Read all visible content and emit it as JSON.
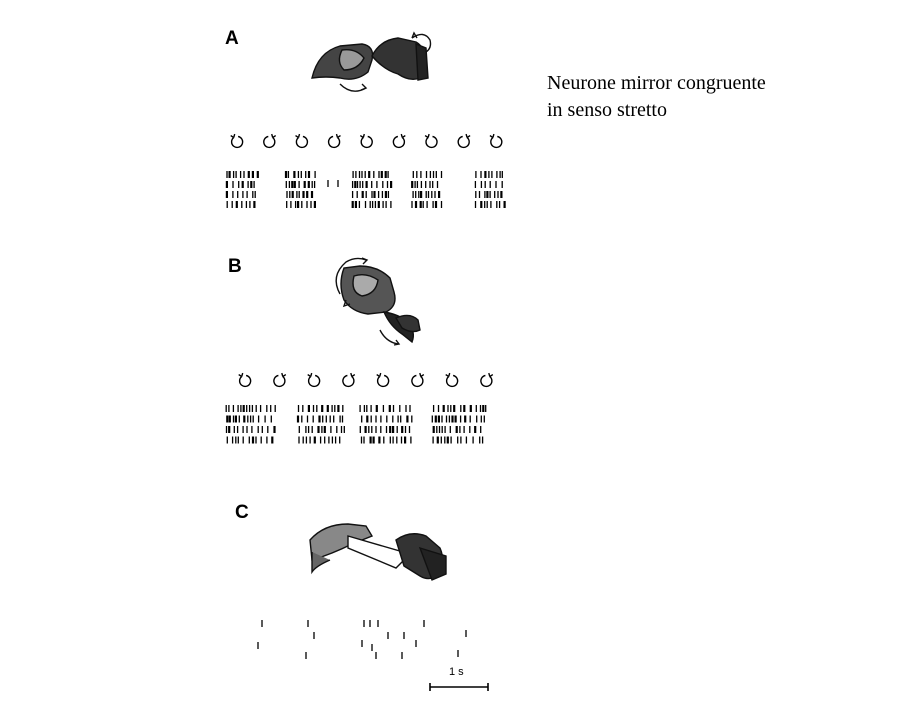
{
  "panels": [
    {
      "label": "A",
      "icons": [
        "cw",
        "ccw",
        "cw",
        "ccw",
        "cw",
        "ccw",
        "cw",
        "ccw",
        "cw"
      ]
    },
    {
      "label": "B",
      "icons": [
        "cw",
        "ccw",
        "cw",
        "ccw",
        "cw",
        "ccw",
        "cw",
        "ccw"
      ]
    },
    {
      "label": "C"
    }
  ],
  "caption": {
    "line1": "Neurone mirror congruente",
    "line2": "in senso stretto"
  },
  "scale_bar": {
    "label": "1 s",
    "value": 1,
    "unit": "s"
  }
}
